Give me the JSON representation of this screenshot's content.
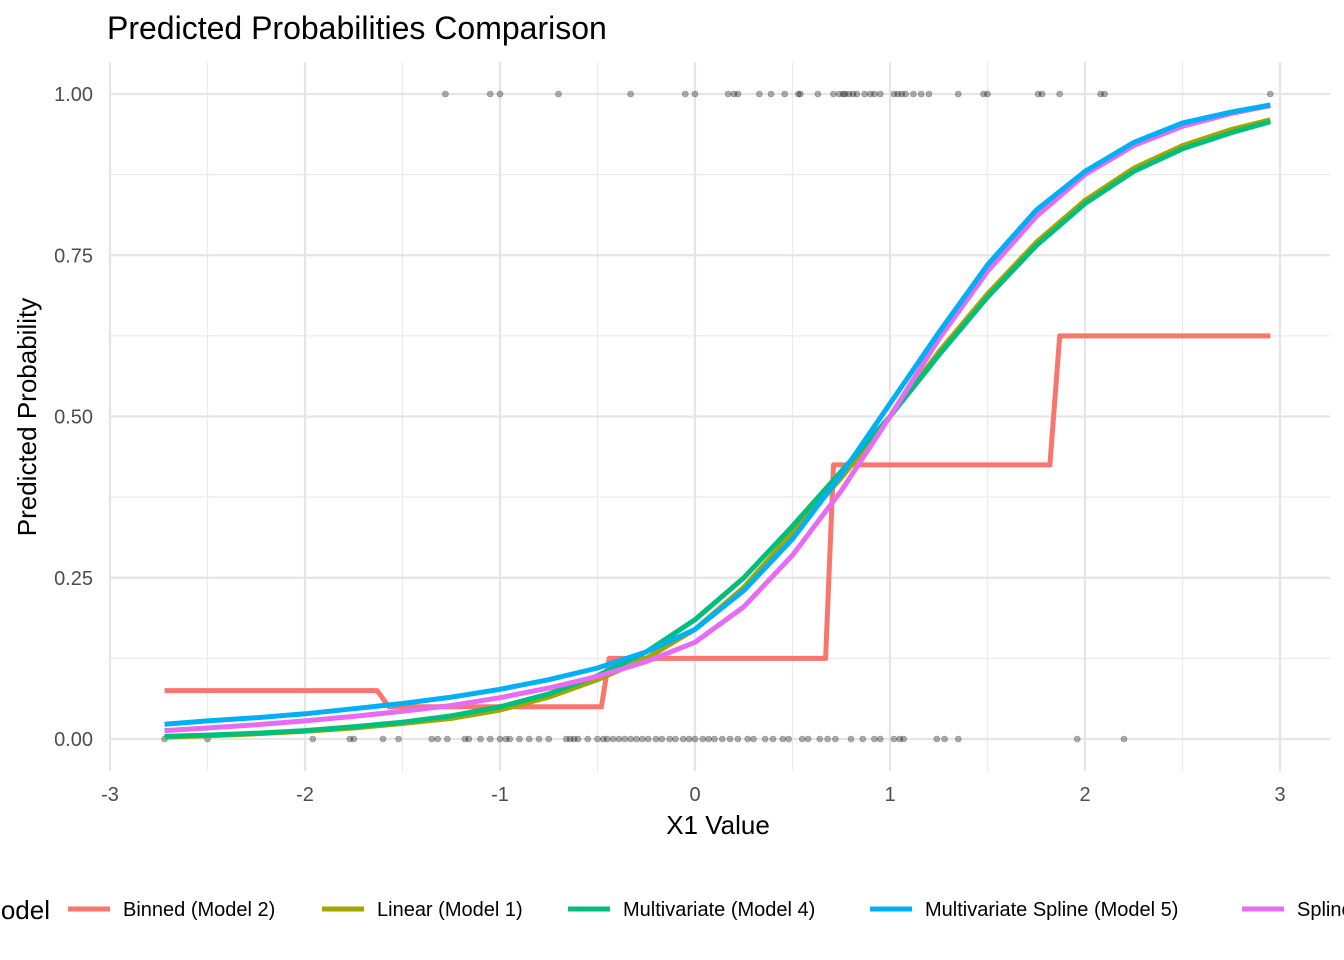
{
  "chart_data": {
    "type": "line",
    "title": "Predicted Probabilities Comparison",
    "xlabel": "X1 Value",
    "ylabel": "Predicted Probability",
    "xlim": [
      -3,
      3
    ],
    "ylim": [
      0,
      1
    ],
    "x_ticks": [
      -3,
      -2,
      -1,
      0,
      1,
      2,
      3
    ],
    "x_tick_labels": [
      "-3",
      "-2",
      "-1",
      "0",
      "1",
      "2",
      "3"
    ],
    "y_ticks": [
      0,
      0.25,
      0.5,
      0.75,
      1
    ],
    "y_tick_labels": [
      "0.00",
      "0.25",
      "0.50",
      "0.75",
      "1.00"
    ],
    "grid": true,
    "legend": {
      "title": "Model",
      "position": "bottom",
      "entries": [
        "Binned (Model 2)",
        "Linear (Model 1)",
        "Multivariate (Model 4)",
        "Multivariate Spline (Model 5)",
        "Spline"
      ]
    },
    "series": [
      {
        "name": "Binned (Model 2)",
        "color": "#F8766D",
        "x": [
          -2.72,
          -1.63,
          -1.57,
          -0.48,
          -0.44,
          0.67,
          0.71,
          1.82,
          1.87,
          2.95
        ],
        "y": [
          0.075,
          0.075,
          0.05,
          0.05,
          0.125,
          0.125,
          0.425,
          0.425,
          0.625,
          0.625
        ]
      },
      {
        "name": "Linear (Model 1)",
        "color": "#A3A500",
        "x": [
          -2.72,
          -2.5,
          -2.25,
          -2.0,
          -1.75,
          -1.5,
          -1.25,
          -1.0,
          -0.75,
          -0.5,
          -0.25,
          0.0,
          0.25,
          0.5,
          0.75,
          1.0,
          1.25,
          1.5,
          1.75,
          2.0,
          2.25,
          2.5,
          2.75,
          2.95
        ],
        "y": [
          0.003,
          0.005,
          0.008,
          0.012,
          0.017,
          0.024,
          0.032,
          0.045,
          0.065,
          0.092,
          0.125,
          0.17,
          0.235,
          0.32,
          0.405,
          0.5,
          0.6,
          0.69,
          0.77,
          0.835,
          0.885,
          0.92,
          0.945,
          0.96
        ]
      },
      {
        "name": "Multivariate (Model 4)",
        "color": "#00BF7D",
        "x": [
          -2.72,
          -2.5,
          -2.25,
          -2.0,
          -1.75,
          -1.5,
          -1.25,
          -1.0,
          -0.75,
          -0.5,
          -0.25,
          0.0,
          0.25,
          0.5,
          0.75,
          1.0,
          1.25,
          1.5,
          1.75,
          2.0,
          2.25,
          2.5,
          2.75,
          2.95
        ],
        "y": [
          0.004,
          0.006,
          0.009,
          0.013,
          0.019,
          0.026,
          0.036,
          0.05,
          0.07,
          0.098,
          0.135,
          0.185,
          0.25,
          0.33,
          0.415,
          0.5,
          0.595,
          0.685,
          0.765,
          0.83,
          0.88,
          0.915,
          0.94,
          0.957
        ]
      },
      {
        "name": "Multivariate Spline (Model 5)",
        "color": "#00B0F6",
        "x": [
          -2.72,
          -2.5,
          -2.25,
          -2.0,
          -1.75,
          -1.5,
          -1.25,
          -1.0,
          -0.75,
          -0.5,
          -0.25,
          0.0,
          0.25,
          0.5,
          0.75,
          1.0,
          1.25,
          1.5,
          1.75,
          2.0,
          2.25,
          2.5,
          2.75,
          2.95
        ],
        "y": [
          0.023,
          0.028,
          0.033,
          0.039,
          0.047,
          0.055,
          0.065,
          0.077,
          0.092,
          0.11,
          0.135,
          0.17,
          0.23,
          0.31,
          0.41,
          0.52,
          0.63,
          0.735,
          0.82,
          0.88,
          0.925,
          0.955,
          0.972,
          0.983
        ]
      },
      {
        "name": "Spline",
        "color": "#E76BF3",
        "x": [
          -2.72,
          -2.5,
          -2.25,
          -2.0,
          -1.75,
          -1.5,
          -1.25,
          -1.0,
          -0.75,
          -0.5,
          -0.25,
          0.0,
          0.25,
          0.5,
          0.75,
          1.0,
          1.25,
          1.5,
          1.75,
          2.0,
          2.25,
          2.5,
          2.75,
          2.95
        ],
        "y": [
          0.013,
          0.017,
          0.022,
          0.028,
          0.035,
          0.043,
          0.052,
          0.064,
          0.079,
          0.097,
          0.12,
          0.15,
          0.205,
          0.285,
          0.385,
          0.5,
          0.62,
          0.725,
          0.81,
          0.875,
          0.92,
          0.95,
          0.97,
          0.982
        ]
      }
    ],
    "observations": {
      "name": "observed points",
      "color": "#000000",
      "y1_x": [
        -1.28,
        -1.05,
        -1.0,
        -0.7,
        -0.33,
        -0.05,
        0.0,
        0.17,
        0.2,
        0.22,
        0.33,
        0.39,
        0.46,
        0.53,
        0.54,
        0.63,
        0.71,
        0.74,
        0.76,
        0.77,
        0.79,
        0.81,
        0.83,
        0.87,
        0.9,
        0.92,
        0.95,
        1.02,
        1.04,
        1.06,
        1.08,
        1.12,
        1.16,
        1.2,
        1.35,
        1.48,
        1.5,
        1.76,
        1.78,
        1.87,
        2.08,
        2.1,
        2.95
      ],
      "y0_x": [
        -2.72,
        -2.5,
        -1.96,
        -1.77,
        -1.75,
        -1.6,
        -1.52,
        -1.35,
        -1.32,
        -1.27,
        -1.18,
        -1.16,
        -1.1,
        -1.05,
        -1.0,
        -0.97,
        -0.95,
        -0.9,
        -0.85,
        -0.8,
        -0.75,
        -0.66,
        -0.64,
        -0.62,
        -0.6,
        -0.55,
        -0.5,
        -0.47,
        -0.45,
        -0.42,
        -0.39,
        -0.36,
        -0.33,
        -0.3,
        -0.27,
        -0.24,
        -0.2,
        -0.17,
        -0.13,
        -0.1,
        -0.06,
        -0.03,
        0.0,
        0.04,
        0.07,
        0.1,
        0.14,
        0.18,
        0.22,
        0.27,
        0.3,
        0.36,
        0.4,
        0.45,
        0.48,
        0.55,
        0.58,
        0.64,
        0.68,
        0.72,
        0.8,
        0.86,
        0.92,
        0.95,
        1.02,
        1.05,
        1.07,
        1.24,
        1.28,
        1.35,
        1.96,
        2.2
      ]
    }
  }
}
